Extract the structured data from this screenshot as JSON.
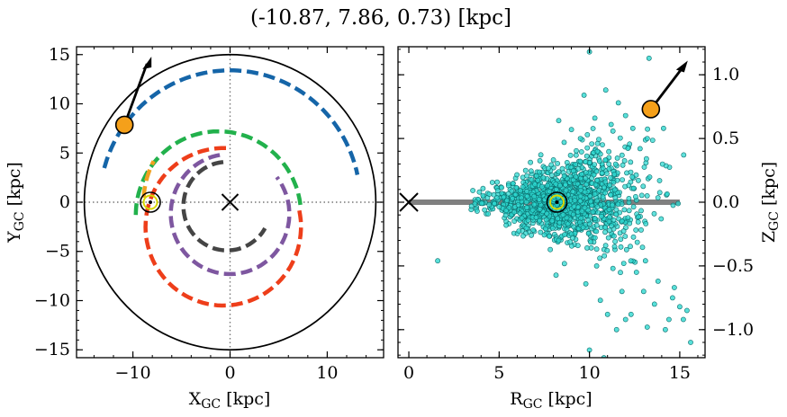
{
  "figure": {
    "title": "(-10.87, 7.86, 0.73) [kpc]"
  },
  "chart_data": [
    {
      "type": "scatter",
      "panel": "left",
      "xlabel": "X",
      "xlabel_sub": "GC",
      "xlabel_unit": " [kpc]",
      "ylabel": "Y",
      "ylabel_sub": "GC",
      "ylabel_unit": " [kpc]",
      "xlim": [
        -15.8,
        15.8
      ],
      "ylim": [
        -15.8,
        15.8
      ],
      "xticks": [
        -10,
        0,
        10
      ],
      "xtick_labels": [
        "−10",
        "0",
        "10"
      ],
      "yticks": [
        -15,
        -10,
        -5,
        0,
        5,
        10,
        15
      ],
      "ytick_labels": [
        "−15",
        "−10",
        "−5",
        "0",
        "5",
        "10",
        "15"
      ],
      "galaxy_boundary_radius": 15,
      "galactic_center": [
        0,
        0
      ],
      "sun_position": [
        -8.2,
        0
      ],
      "target": {
        "x": -10.87,
        "y": 7.86,
        "color": "#f5a01a"
      },
      "spiral_arms": [
        {
          "color": "#1565a8",
          "radius": 13.4,
          "theta_start": 165,
          "theta_end": 12
        },
        {
          "color": "#22b14c",
          "radius": 8.5,
          "theta_start": 180,
          "theta_end": 7,
          "center": [
            -1.2,
            -1.3
          ]
        },
        {
          "color": "#f0a020",
          "radius": 8.9,
          "theta_start": 177,
          "theta_end": 152
        },
        {
          "color": "#ee3e1a",
          "radius": 8.0,
          "theta_start": 88,
          "theta_end": 240,
          "center": [
            -0.7,
            -2.5
          ],
          "extra_end": 12
        },
        {
          "color": "#7e57a0",
          "radius": 6.1,
          "theta_start": 100,
          "theta_end": 280,
          "center": [
            0,
            -1.2
          ],
          "extra_end": 38
        },
        {
          "color": "#454545",
          "radius": 4.5,
          "theta_start": 95,
          "theta_end": 330,
          "center": [
            -0.3,
            -0.4
          ]
        }
      ]
    },
    {
      "type": "scatter",
      "panel": "right",
      "xlabel": "R",
      "xlabel_sub": "GC",
      "xlabel_unit": " [kpc]",
      "ylabel": "Z",
      "ylabel_sub": "GC",
      "ylabel_unit": " [kpc]",
      "xlim": [
        -0.6,
        16.4
      ],
      "ylim": [
        -1.22,
        1.22
      ],
      "xticks": [
        0,
        5,
        10,
        15
      ],
      "xtick_labels": [
        "0",
        "5",
        "10",
        "15"
      ],
      "yticks": [
        -1.0,
        -0.5,
        0.0,
        0.5,
        1.0
      ],
      "ytick_labels": [
        "−1.0",
        "−0.5",
        "0.0",
        "0.5",
        "1.0"
      ],
      "disk_plane": {
        "r_start": 0,
        "r_end": 15,
        "z": 0
      },
      "galactic_center": [
        0,
        0
      ],
      "sun_position": [
        8.2,
        0
      ],
      "target": {
        "r": 13.4,
        "z": 0.73,
        "color": "#f5a01a"
      },
      "point_color": "#2ed8d0",
      "point_edge": "#0b6b6b",
      "stars_sample_count": 1400,
      "outlier_points": [
        [
          10.0,
          1.18
        ],
        [
          13.3,
          1.13
        ],
        [
          9.7,
          0.84
        ],
        [
          10.3,
          0.66
        ],
        [
          10.9,
          0.88
        ],
        [
          11.6,
          0.78
        ],
        [
          12.0,
          0.68
        ],
        [
          11.2,
          0.61
        ],
        [
          12.4,
          0.58
        ],
        [
          13.2,
          0.5
        ],
        [
          14.1,
          0.58
        ],
        [
          12.8,
          0.42
        ],
        [
          9.0,
          0.57
        ],
        [
          8.6,
          0.47
        ],
        [
          8.3,
          0.64
        ],
        [
          9.5,
          0.5
        ],
        [
          1.6,
          -0.46
        ],
        [
          15.0,
          -0.82
        ],
        [
          14.6,
          -0.75
        ],
        [
          15.2,
          -0.92
        ],
        [
          15.6,
          -1.1
        ],
        [
          14.2,
          -1.0
        ],
        [
          13.2,
          -0.98
        ],
        [
          12.0,
          -0.92
        ],
        [
          11.0,
          -0.88
        ],
        [
          10.0,
          -1.16
        ],
        [
          11.5,
          -1.0
        ],
        [
          9.8,
          -0.64
        ],
        [
          11.8,
          -0.7
        ],
        [
          13.6,
          -0.8
        ],
        [
          14.7,
          -0.67
        ],
        [
          10.6,
          -0.77
        ],
        [
          12.6,
          -0.55
        ],
        [
          13.8,
          -0.62
        ],
        [
          11.3,
          -0.52
        ],
        [
          12.3,
          -0.88
        ],
        [
          10.8,
          -1.22
        ],
        [
          14.4,
          -0.92
        ],
        [
          10.4,
          -0.5
        ],
        [
          13.0,
          -0.7
        ],
        [
          8.3,
          -0.3
        ],
        [
          11.9,
          -0.48
        ],
        [
          15.4,
          -0.85
        ],
        [
          13.1,
          -0.46
        ]
      ]
    }
  ]
}
